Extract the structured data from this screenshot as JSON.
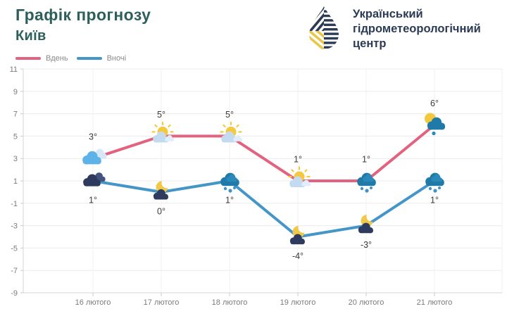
{
  "header": {
    "title": "Графік прогнозу",
    "subtitle": "Київ",
    "org_line1": "Український",
    "org_line2": "гідрометеорологічний",
    "org_line3": "центр"
  },
  "legend": [
    {
      "label": "Вдень",
      "color": "#e26380"
    },
    {
      "label": "Вночі",
      "color": "#4596c8"
    }
  ],
  "chart_data": {
    "type": "line",
    "title": "Графік прогнозу",
    "location": "Київ",
    "categories": [
      "16 лютого",
      "17 лютого",
      "18 лютого",
      "19 лютого",
      "20 лютого",
      "21 лютого"
    ],
    "series": [
      {
        "name": "Вдень",
        "color": "#e26380",
        "values": [
          3,
          5,
          5,
          1,
          1,
          6
        ],
        "labels": [
          "3°",
          "5°",
          "5°",
          "1°",
          "1°",
          "6°"
        ],
        "icons": [
          "cloudy-day",
          "sun-cloud",
          "sun-cloud",
          "sun-cloud",
          "rain-cloud",
          "sun-rain-cloud"
        ]
      },
      {
        "name": "Вночі",
        "color": "#4596c8",
        "values": [
          1,
          0,
          1,
          -4,
          -3,
          1
        ],
        "labels": [
          "1°",
          "0°",
          "1°",
          "-4°",
          "-3°",
          "1°"
        ],
        "icons": [
          "clouds-night",
          "moon-cloud",
          "rain-cloud",
          "moon-cloud",
          "moon-cloud",
          "rain-cloud"
        ]
      }
    ],
    "y_ticks": [
      11,
      9,
      7,
      5,
      3,
      1,
      -1,
      -3,
      -5,
      -7,
      -9
    ],
    "ylim": [
      -9,
      11
    ],
    "xlabel": "",
    "ylabel": "",
    "grid": true,
    "legend_position": "top-left"
  },
  "colors": {
    "title_teal": "#2d605d",
    "logo_navy": "#2b3a55",
    "logo_yellow": "#e8c64a",
    "gridline": "#ececec",
    "axis": "#d6d6d6",
    "tick_text": "#7b7b7b"
  }
}
